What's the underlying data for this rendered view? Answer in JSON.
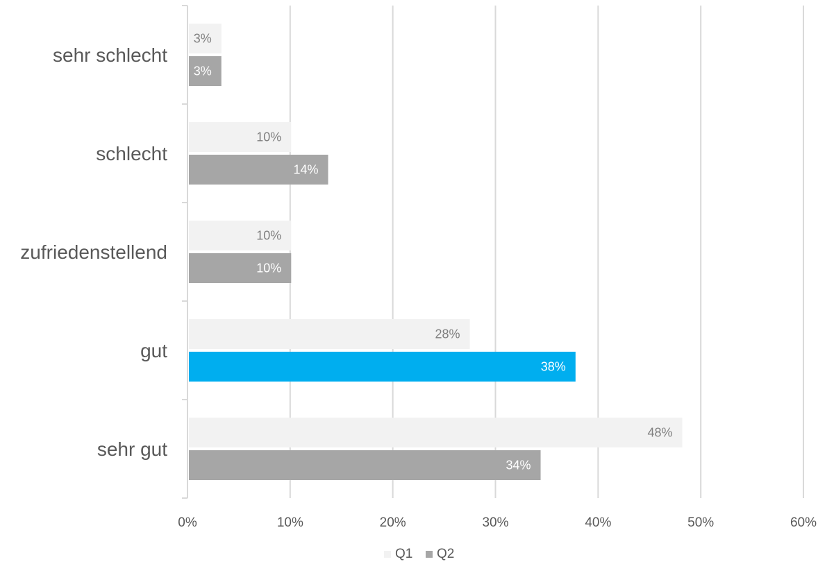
{
  "chart_data": {
    "type": "bar",
    "orientation": "horizontal",
    "categories": [
      "sehr schlecht",
      "schlecht",
      "zufriedenstellend",
      "gut",
      "sehr gut"
    ],
    "series": [
      {
        "name": "Q1",
        "values": [
          3.3,
          10.1,
          10.1,
          27.5,
          48.2
        ],
        "labels": [
          "3%",
          "10%",
          "10%",
          "28%",
          "48%"
        ],
        "color": "#f2f2f2",
        "label_color": "#7f7f7f"
      },
      {
        "name": "Q2",
        "values": [
          3.3,
          13.7,
          10.1,
          37.8,
          34.4
        ],
        "labels": [
          "3%",
          "14%",
          "10%",
          "38%",
          "34%"
        ],
        "color": "#a6a6a6",
        "label_color": "#ffffff",
        "highlight": {
          "index": 3,
          "color": "#00aeef"
        }
      }
    ],
    "x_ticks": [
      "0%",
      "10%",
      "20%",
      "30%",
      "40%",
      "50%",
      "60%"
    ],
    "xlim": [
      0,
      60
    ],
    "grid": true,
    "gridline_color": "#d9d9d9",
    "legend_position": "bottom"
  }
}
